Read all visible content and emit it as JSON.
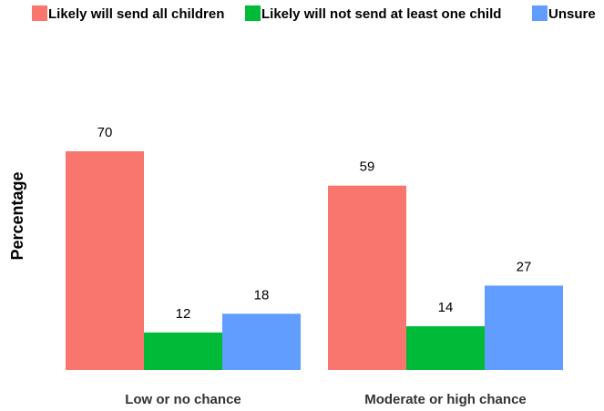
{
  "chart_data": {
    "type": "bar",
    "categories": [
      "Low or no chance",
      "Moderate or high chance"
    ],
    "series": [
      {
        "name": "Likely will send all children",
        "values": [
          70,
          59
        ],
        "color": "#F8766D"
      },
      {
        "name": "Likely will not send at least one child",
        "values": [
          12,
          14
        ],
        "color": "#00BA38"
      },
      {
        "name": "Unsure",
        "values": [
          18,
          27
        ],
        "color": "#619CFF"
      }
    ],
    "title": "",
    "xlabel": "",
    "ylabel": "Percentage",
    "ylim": [
      0,
      70
    ],
    "grid": false,
    "legend_position": "top"
  }
}
